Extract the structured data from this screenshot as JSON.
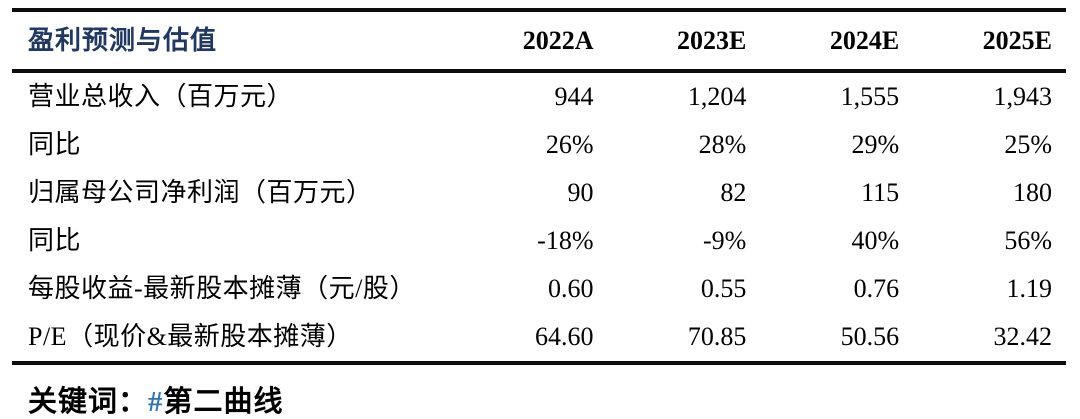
{
  "table": {
    "title": "盈利预测与估值",
    "columns": [
      "2022A",
      "2023E",
      "2024E",
      "2025E"
    ],
    "rows": [
      {
        "label": "营业总收入（百万元）",
        "values": [
          "944",
          "1,204",
          "1,555",
          "1,943"
        ]
      },
      {
        "label": "同比",
        "values": [
          "26%",
          "28%",
          "29%",
          "25%"
        ]
      },
      {
        "label": "归属母公司净利润（百万元）",
        "values": [
          "90",
          "82",
          "115",
          "180"
        ]
      },
      {
        "label": "同比",
        "values": [
          "-18%",
          "-9%",
          "40%",
          "56%"
        ]
      },
      {
        "label": "每股收益-最新股本摊薄（元/股）",
        "values": [
          "0.60",
          "0.55",
          "0.76",
          "1.19"
        ]
      },
      {
        "label": "P/E（现价&最新股本摊薄）",
        "values": [
          "64.60",
          "70.85",
          "50.56",
          "32.42"
        ]
      }
    ]
  },
  "footer": {
    "keyword_label": "关键词：",
    "hash_symbol": "#",
    "keyword_value": "第二曲线"
  },
  "colors": {
    "title_navy": "#1f3864",
    "hash_blue": "#2e75b6",
    "rule_black": "#0d0d0d",
    "text": "#000000"
  }
}
